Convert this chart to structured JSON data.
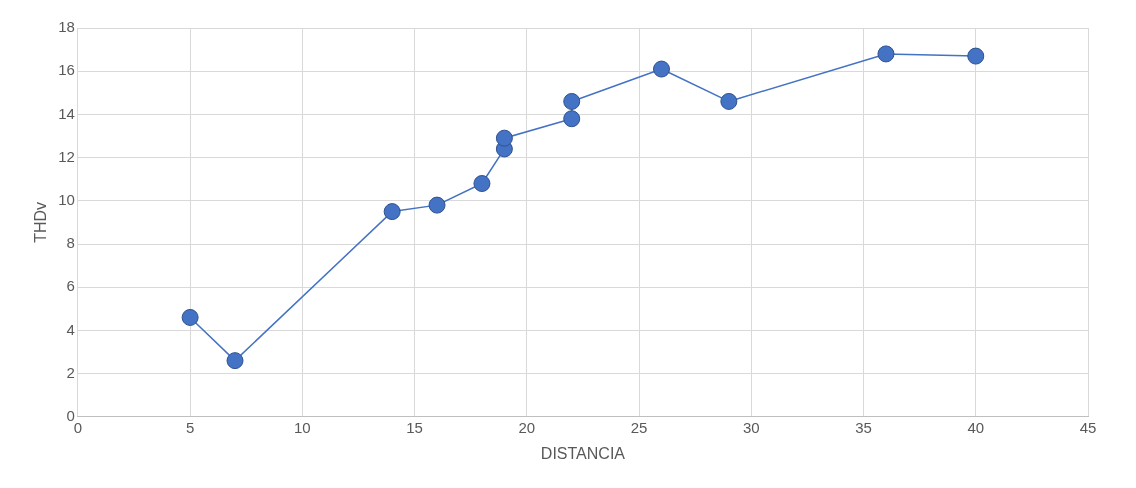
{
  "chart_data": {
    "type": "line",
    "xlabel": "DISTANCIA",
    "ylabel": "THDv",
    "x": [
      5,
      7,
      14,
      16,
      18,
      19,
      19,
      22,
      22,
      26,
      29,
      36,
      40
    ],
    "series": [
      {
        "color": "#4472c4",
        "values": [
          4.6,
          2.6,
          9.5,
          9.8,
          10.8,
          12.4,
          12.9,
          13.8,
          14.6,
          16.1,
          14.6,
          16.8,
          16.7
        ]
      }
    ],
    "xlim": [
      0,
      45
    ],
    "xticks": [
      0,
      5,
      10,
      15,
      20,
      25,
      30,
      35,
      40,
      45
    ],
    "ylim": [
      0,
      18
    ],
    "yticks": [
      0,
      2,
      4,
      6,
      8,
      10,
      12,
      14,
      16,
      18
    ],
    "grid": true,
    "legend": false,
    "marker": "circle",
    "line_style": "solid"
  }
}
